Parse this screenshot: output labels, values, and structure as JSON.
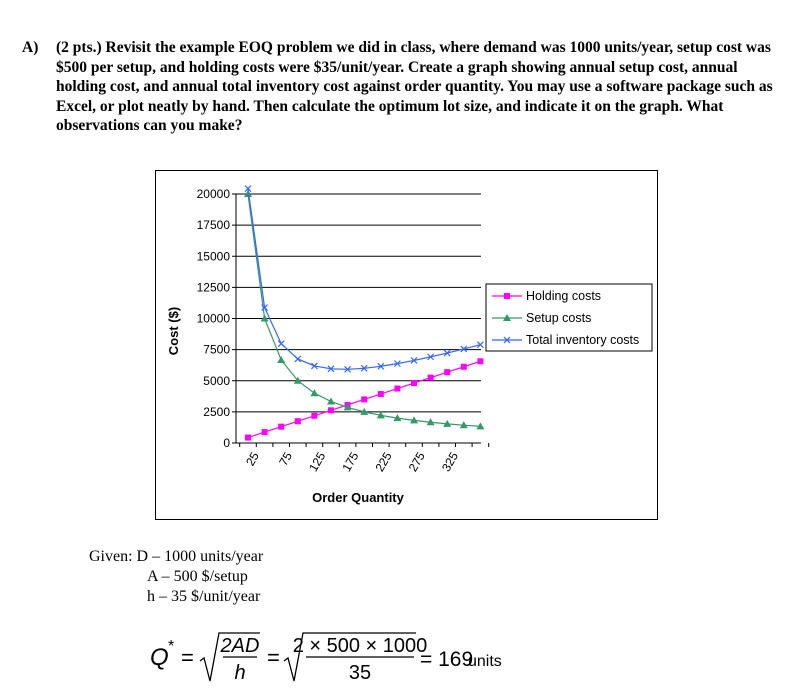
{
  "question": {
    "label": "A)",
    "text": "(2 pts.) Revisit the example EOQ problem we did in class, where demand was 1000 units/year, setup cost was $500 per setup, and holding costs were $35/unit/year. Create a graph showing annual setup cost, annual holding cost, and annual total inventory cost against order quantity. You may use a software package such as Excel, or plot neatly by hand. Then calculate the optimum lot size, and indicate it on the graph. What observations can you make?"
  },
  "chart_data": {
    "type": "line",
    "title": "",
    "xlabel": "Order Quantity",
    "ylabel": "Cost ($)",
    "x": [
      25,
      50,
      75,
      100,
      125,
      150,
      175,
      200,
      225,
      250,
      275,
      300,
      325,
      350,
      375
    ],
    "x_tick_labels": [
      "25",
      "75",
      "125",
      "175",
      "225",
      "275",
      "325"
    ],
    "y_ticks": [
      0,
      2500,
      5000,
      7500,
      10000,
      12500,
      15000,
      17500,
      20000
    ],
    "ylim": [
      0,
      20000
    ],
    "grid": true,
    "legend_position": "right",
    "series": [
      {
        "name": "Holding costs",
        "color": "#ff00ff",
        "marker": "square",
        "values": [
          437.5,
          875,
          1312.5,
          1750,
          2187.5,
          2625,
          3062.5,
          3500,
          3937.5,
          4375,
          4812.5,
          5250,
          5687.5,
          6125,
          6562.5
        ]
      },
      {
        "name": "Setup costs",
        "color": "#339966",
        "marker": "triangle",
        "values": [
          20000,
          10000,
          6666.7,
          5000,
          4000,
          3333.3,
          2857.1,
          2500,
          2222.2,
          2000,
          1818.2,
          1666.7,
          1538.5,
          1428.6,
          1333.3
        ]
      },
      {
        "name": "Total inventory costs",
        "color": "#3366ff",
        "marker": "x",
        "values": [
          20437.5,
          10875,
          7979.2,
          6750,
          6187.5,
          5958.3,
          5919.6,
          6000,
          6159.7,
          6375,
          6630.7,
          6916.7,
          7226,
          7553.6,
          7895.8
        ]
      }
    ]
  },
  "given": {
    "line1": "Given: D – 1000 units/year",
    "line2": "A – 500 $/setup",
    "line3": "h – 35 $/unit/year"
  },
  "formula": {
    "lhs": "Q",
    "star": "*",
    "eq": "=",
    "num1": "2AD",
    "den1": "h",
    "num2": "2 × 500 × 1000",
    "den2": "35",
    "result": "= 169",
    "unit": "units"
  }
}
